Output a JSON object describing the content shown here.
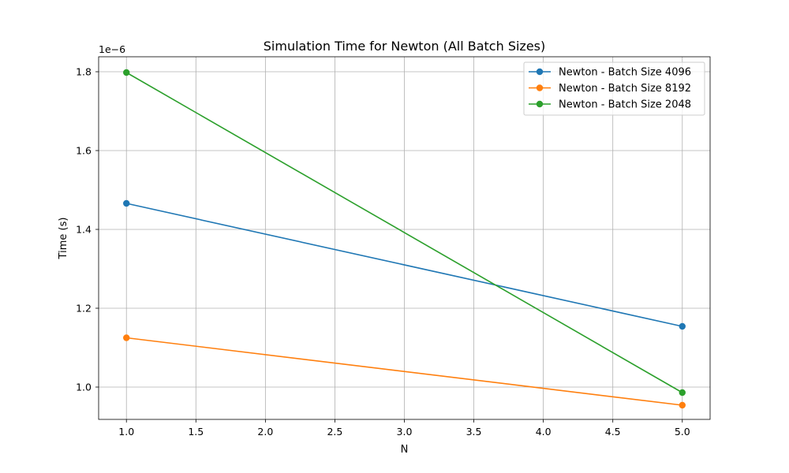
{
  "chart_data": {
    "type": "line",
    "title": "Simulation Time for Newton (All Batch Sizes)",
    "xlabel": "N",
    "ylabel": "Time (s)",
    "offset_label": "1e−6",
    "xlim": [
      0.8,
      5.2
    ],
    "ylim": [
      0.918,
      1.838
    ],
    "xticks": [
      1.0,
      1.5,
      2.0,
      2.5,
      3.0,
      3.5,
      4.0,
      4.5,
      5.0
    ],
    "xtick_labels": [
      "1.0",
      "1.5",
      "2.0",
      "2.5",
      "3.0",
      "3.5",
      "4.0",
      "4.5",
      "5.0"
    ],
    "yticks": [
      1.0,
      1.2,
      1.4,
      1.6,
      1.8
    ],
    "ytick_labels": [
      "1.0",
      "1.2",
      "1.4",
      "1.6",
      "1.8"
    ],
    "grid": true,
    "legend_position": "top-right",
    "series": [
      {
        "name": "Newton - Batch Size 4096",
        "color": "#1f77b4",
        "x": [
          1,
          5
        ],
        "y": [
          1.466,
          1.154
        ]
      },
      {
        "name": "Newton - Batch Size 8192",
        "color": "#ff7f0e",
        "x": [
          1,
          5
        ],
        "y": [
          1.125,
          0.954
        ]
      },
      {
        "name": "Newton - Batch Size 2048",
        "color": "#2ca02c",
        "x": [
          1,
          5
        ],
        "y": [
          1.798,
          0.986
        ]
      }
    ]
  }
}
